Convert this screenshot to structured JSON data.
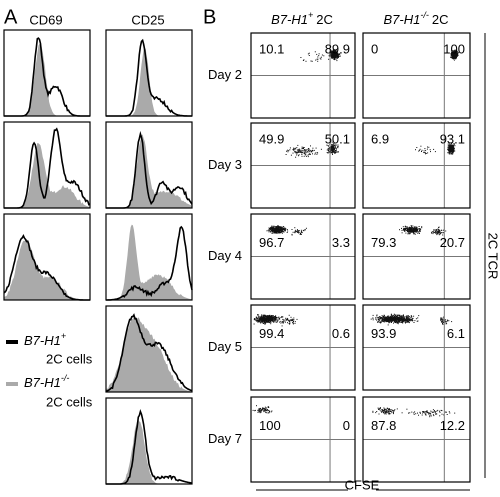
{
  "panel_a": {
    "label": "A",
    "columns": [
      "CD69",
      "CD25"
    ],
    "legend": [
      {
        "name": "B7-H1",
        "sup": "+",
        "suffix": "2C cells"
      },
      {
        "name": "B7-H1",
        "sup": "-/-",
        "suffix": "2C cells"
      }
    ]
  },
  "panel_b": {
    "label": "B",
    "columns": [
      {
        "name": "B7-H1",
        "sup": "+",
        "suffix": "2C"
      },
      {
        "name": "B7-H1",
        "sup": "-/-",
        "suffix": "2C"
      }
    ],
    "rows": [
      {
        "day": "Day 2",
        "left": [
          10.1,
          89.9
        ],
        "right": [
          0,
          100
        ]
      },
      {
        "day": "Day 3",
        "left": [
          49.9,
          50.1
        ],
        "right": [
          6.9,
          93.1
        ]
      },
      {
        "day": "Day 4",
        "left": [
          96.7,
          3.3
        ],
        "right": [
          79.3,
          20.7
        ]
      },
      {
        "day": "Day 5",
        "left": [
          99.4,
          0.6
        ],
        "right": [
          93.9,
          6.1
        ]
      },
      {
        "day": "Day 7",
        "left": [
          100,
          0
        ],
        "right": [
          87.8,
          12.2
        ]
      }
    ],
    "y_axis": "2C TCR",
    "x_axis": "CFSE"
  }
}
